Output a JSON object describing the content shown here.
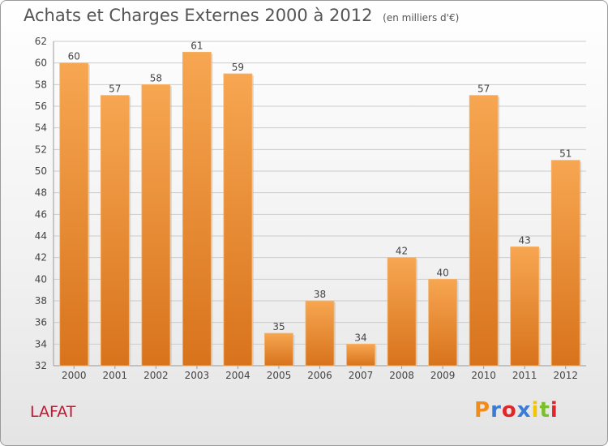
{
  "header": {
    "title": "Achats et Charges Externes 2000 à 2012",
    "subtitle": "(en milliers d'€)"
  },
  "footer": {
    "commune": "LAFAT",
    "logo_text": "Proxiti",
    "logo_colors": [
      "#f08c1e",
      "#3a7bd5",
      "#e0262a",
      "#3a7bd5",
      "#f5c400",
      "#7abf2c",
      "#e0262a"
    ]
  },
  "chart_data": {
    "type": "bar",
    "title": "Achats et Charges Externes 2000 à 2012",
    "subtitle": "(en milliers d'€)",
    "categories": [
      "2000",
      "2001",
      "2002",
      "2003",
      "2004",
      "2005",
      "2006",
      "2007",
      "2008",
      "2009",
      "2010",
      "2011",
      "2012"
    ],
    "values": [
      60,
      57,
      58,
      61,
      59,
      35,
      38,
      34,
      42,
      40,
      57,
      43,
      51
    ],
    "ylim": [
      32,
      62
    ],
    "yticks": [
      32,
      34,
      36,
      38,
      40,
      42,
      44,
      46,
      48,
      50,
      52,
      54,
      56,
      58,
      60,
      62
    ],
    "grid": true,
    "colors": {
      "bar_light": "#f7a651",
      "bar_dark": "#d8731c",
      "grid": "#cccccc",
      "text": "#444444"
    }
  }
}
